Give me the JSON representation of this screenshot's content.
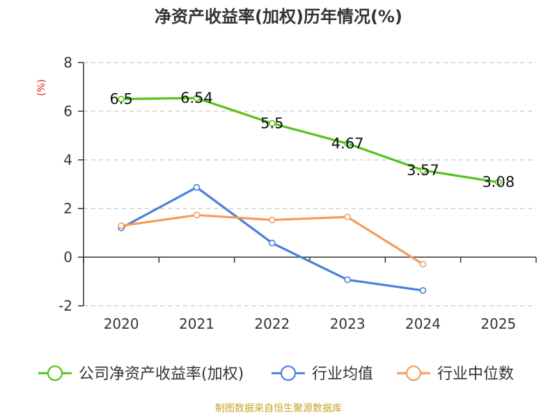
{
  "chart_data": {
    "type": "line",
    "title": "净资产收益率(加权)历年情况(%)",
    "ylabel": "(%)",
    "xlabel": "",
    "categories": [
      "2020",
      "2021",
      "2022",
      "2023",
      "2024",
      "2025"
    ],
    "ylim": [
      -2,
      8
    ],
    "yticks": [
      -2,
      0,
      2,
      4,
      6,
      8
    ],
    "grid": true,
    "legend_position": "bottom",
    "series": [
      {
        "name": "公司净资产收益率(加权)",
        "color": "#52c41a",
        "values": [
          6.5,
          6.54,
          5.5,
          4.67,
          3.57,
          3.08
        ],
        "labels": [
          "6.5",
          "6.54",
          "5.5",
          "4.67",
          "3.57",
          "3.08"
        ]
      },
      {
        "name": "行业均值",
        "color": "#4a7fdc",
        "values": [
          1.2,
          2.87,
          0.58,
          -0.93,
          -1.37,
          null
        ]
      },
      {
        "name": "行业中位数",
        "color": "#f79a5b",
        "values": [
          1.29,
          1.73,
          1.53,
          1.65,
          -0.29,
          null
        ]
      }
    ]
  },
  "footer": {
    "source": "制图数据来自恒生聚源数据库"
  }
}
